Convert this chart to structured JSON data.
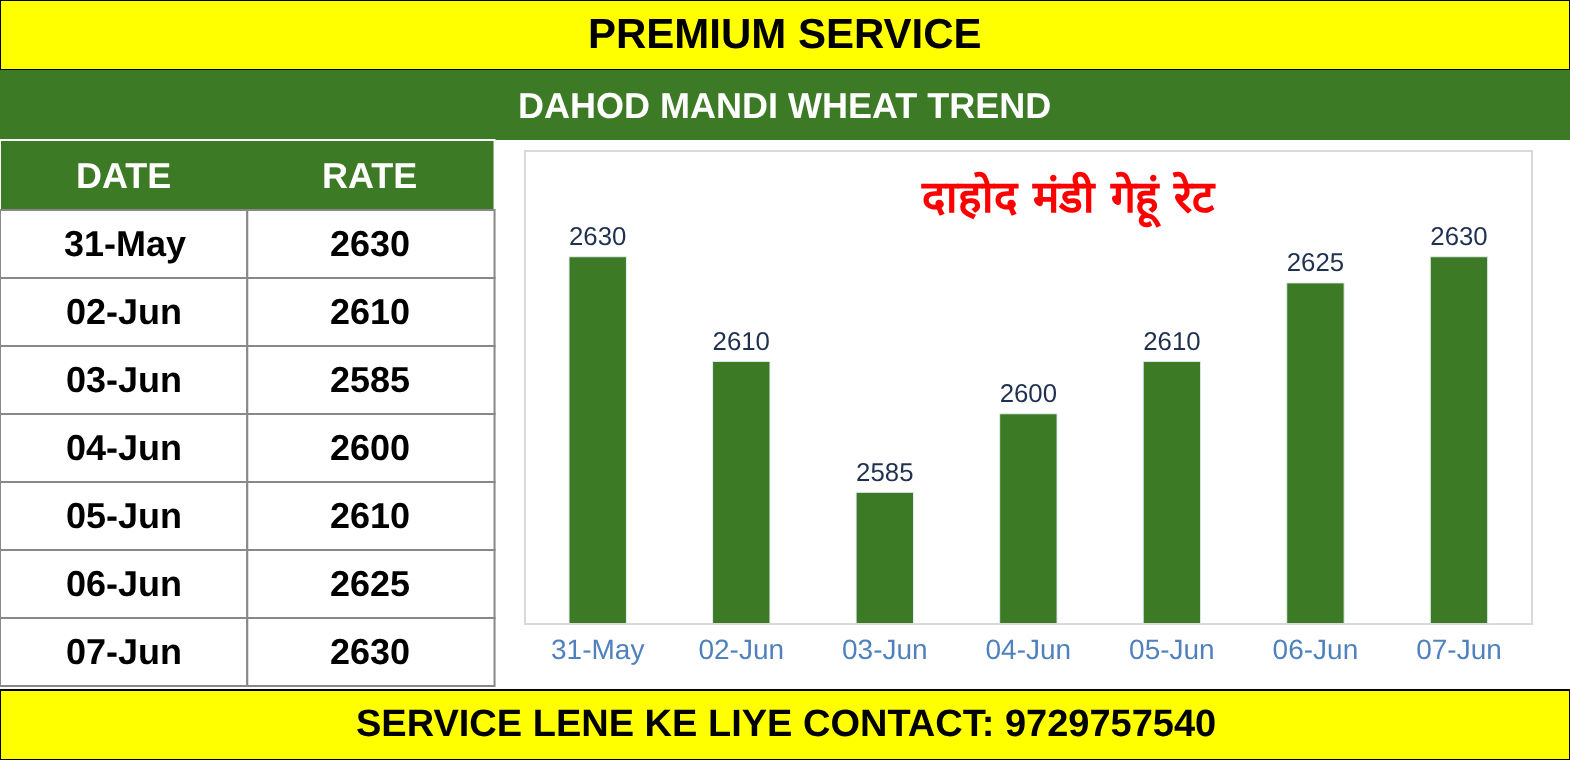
{
  "chart_data": {
    "type": "bar",
    "title": "दाहोद मंडी गेहूं रेट",
    "categories": [
      "31-May",
      "02-Jun",
      "03-Jun",
      "04-Jun",
      "05-Jun",
      "06-Jun",
      "07-Jun"
    ],
    "values": [
      2630,
      2610,
      2585,
      2600,
      2610,
      2625,
      2630
    ],
    "color": "#3d7a26",
    "ylim": [
      2560,
      2650
    ],
    "data_labels": true,
    "annotations": [
      "PREMIUM SERVICE",
      "DAHOD MANDI WHEAT TREND",
      "SERVICE LENE KE LIYE CONTACT: 9729757540",
      "DATE",
      "RATE",
      "2630",
      "2610",
      "2585",
      "2600",
      "2610",
      "2625",
      "2630"
    ]
  }
}
